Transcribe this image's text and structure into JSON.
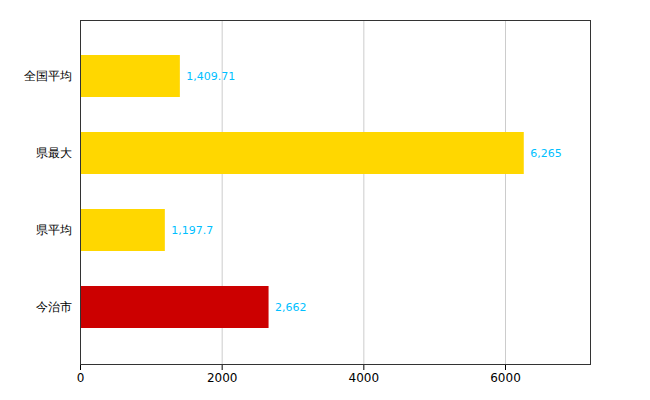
{
  "chart_data": {
    "type": "bar",
    "orientation": "horizontal",
    "categories": [
      "今治市",
      "県平均",
      "県最大",
      "全国平均"
    ],
    "values": [
      2662,
      1197.7,
      6265,
      1409.71
    ],
    "value_labels": [
      "2,662",
      "1,197.7",
      "6,265",
      "1,409.71"
    ],
    "colors": [
      "#CC0000",
      "#FFD700",
      "#FFD700",
      "#FFD700"
    ],
    "xlim": [
      0,
      7200
    ],
    "xticks": [
      0,
      2000,
      4000,
      6000
    ],
    "grid": true,
    "data_labels": true
  }
}
